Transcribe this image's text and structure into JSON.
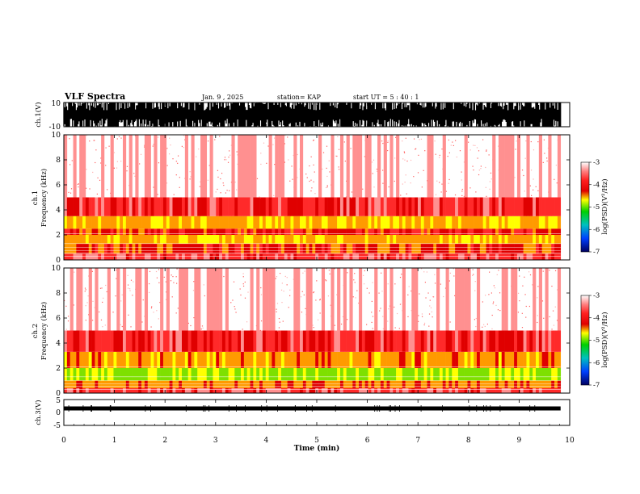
{
  "header": {
    "title": "VLF Spectra",
    "date": "Jan. 9 , 2025",
    "station": "station= KAP",
    "start": "start UT =  5 : 40 : 1"
  },
  "colorbar": {
    "label": "log(PSD)(V²/Hz)",
    "ticks": [
      "-3",
      "-4",
      "-5",
      "-6",
      "-7"
    ],
    "colors": [
      "#ffffff",
      "#ff3b3b",
      "#e00000",
      "#ffff00",
      "#00d000",
      "#00c8c8",
      "#0050ff",
      "#000060"
    ]
  },
  "chart_data": [
    {
      "type": "line",
      "panel": "ch1-waveform",
      "ylabel": "ch.1(V)",
      "ylim": [
        -10,
        10
      ],
      "ytick_labels": [
        "10",
        "-10"
      ],
      "xlim": [
        0,
        10
      ],
      "note_color": "#000000"
    },
    {
      "type": "heatmap",
      "panel": "ch1-spectrogram",
      "ylabel": "ch.1\nFrequency (kHz)",
      "ylim": [
        0,
        10
      ],
      "xlim": [
        0,
        10
      ],
      "ytick_labels": [
        "0",
        "2",
        "4",
        "6",
        "8",
        "10"
      ],
      "bands": [
        {
          "f_lo": 0,
          "f_hi": 0.5,
          "level": -3.8
        },
        {
          "f_lo": 0.5,
          "f_hi": 1.3,
          "level": -4.2
        },
        {
          "f_lo": 1.3,
          "f_hi": 2.0,
          "level": -4.6
        },
        {
          "f_lo": 2.0,
          "f_hi": 2.5,
          "level": -4.1
        },
        {
          "f_lo": 2.5,
          "f_hi": 3.5,
          "level": -4.6
        },
        {
          "f_lo": 3.5,
          "f_hi": 5.0,
          "level": -3.9
        },
        {
          "f_lo": 5.0,
          "f_hi": 10.0,
          "level": -3.3
        }
      ]
    },
    {
      "type": "heatmap",
      "panel": "ch2-spectrogram",
      "ylabel": "ch.2\nFrequency (kHz)",
      "ylim": [
        0,
        10
      ],
      "xlim": [
        0,
        10
      ],
      "ytick_labels": [
        "0",
        "2",
        "4",
        "6",
        "8",
        "10"
      ],
      "bands": [
        {
          "f_lo": 0,
          "f_hi": 0.4,
          "level": -3.8
        },
        {
          "f_lo": 0.4,
          "f_hi": 1.0,
          "level": -4.4
        },
        {
          "f_lo": 1.0,
          "f_hi": 2.0,
          "level": -5.0
        },
        {
          "f_lo": 2.0,
          "f_hi": 3.3,
          "level": -4.5
        },
        {
          "f_lo": 3.3,
          "f_hi": 5.0,
          "level": -3.9
        },
        {
          "f_lo": 5.0,
          "f_hi": 10.0,
          "level": -3.3
        }
      ]
    },
    {
      "type": "line",
      "panel": "ch3-waveform",
      "ylabel": "ch.3(V)",
      "ylim": [
        -5,
        5
      ],
      "ytick_labels": [
        "5",
        "0",
        "-5"
      ],
      "xlim": [
        0,
        10
      ],
      "xlabel": "Time (min)",
      "xtick_labels": [
        "0",
        "1",
        "2",
        "3",
        "4",
        "5",
        "6",
        "7",
        "8",
        "9",
        "10"
      ],
      "data_end_min": 9.82
    }
  ]
}
